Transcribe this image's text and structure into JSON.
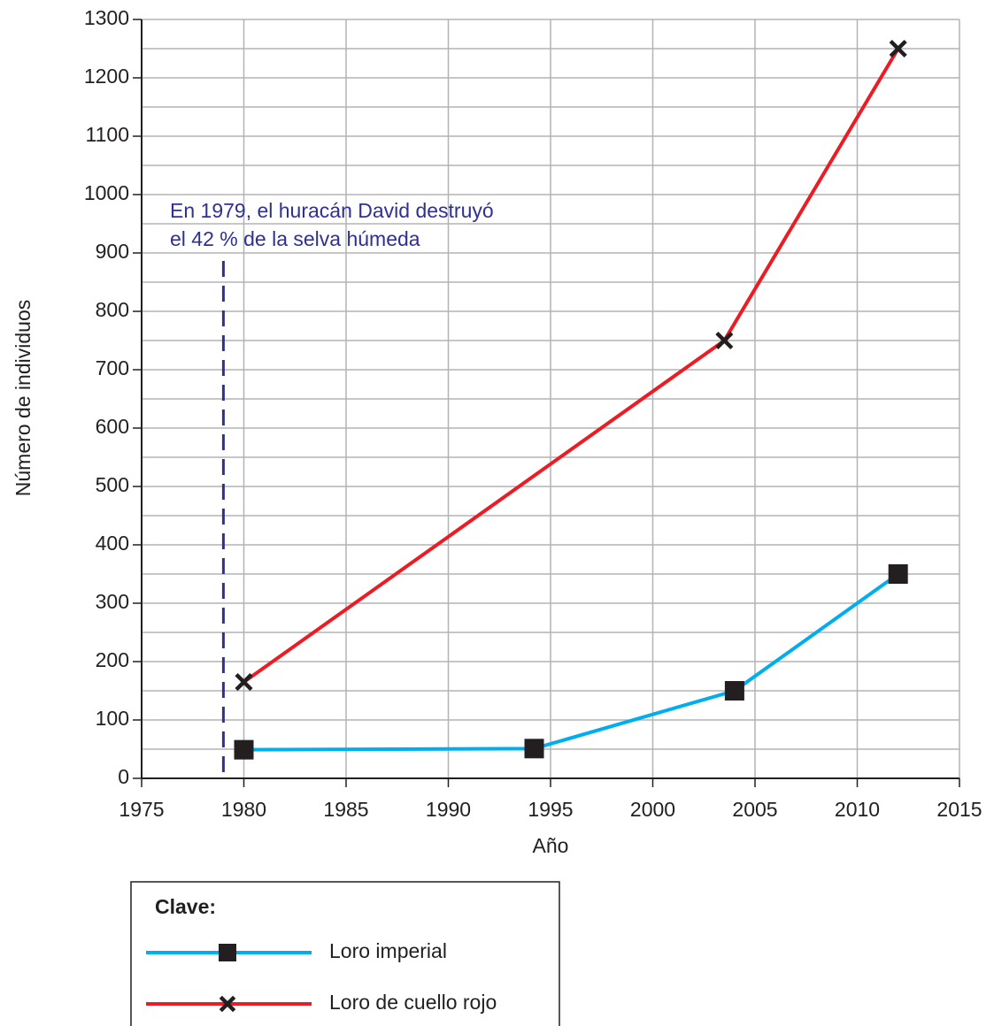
{
  "chart_data": {
    "type": "line",
    "x_label": "Año",
    "y_label": "Número de individuos",
    "xlim": [
      1975,
      2015
    ],
    "xticks": [
      1975,
      1980,
      1985,
      1990,
      1995,
      2000,
      2005,
      2010,
      2015
    ],
    "ylim": [
      0,
      1300
    ],
    "yticks": [
      0,
      100,
      200,
      300,
      400,
      500,
      600,
      700,
      800,
      900,
      1000,
      1100,
      1200,
      1300
    ],
    "y_minor_gridlines": [
      50,
      150,
      250,
      350,
      450,
      550,
      650,
      750,
      850,
      950,
      1050,
      1150,
      1250
    ],
    "grid": true,
    "series": [
      {
        "name": "Loro imperial",
        "color": "#00aeef",
        "marker": "square",
        "x": [
          1980,
          1994.2,
          2004,
          2012
        ],
        "values": [
          49,
          51,
          150,
          350
        ]
      },
      {
        "name": "Loro de cuello rojo",
        "color": "#ed1c24",
        "marker": "x",
        "x": [
          1980,
          2003.5,
          2012
        ],
        "values": [
          165,
          750,
          1250
        ]
      }
    ],
    "annotation": {
      "x": 1979,
      "color": "#2e3192",
      "lines": [
        "En 1979, el huracán David destruyó",
        "el 42 % de la selva húmeda"
      ]
    },
    "legend_title": "Clave:"
  }
}
